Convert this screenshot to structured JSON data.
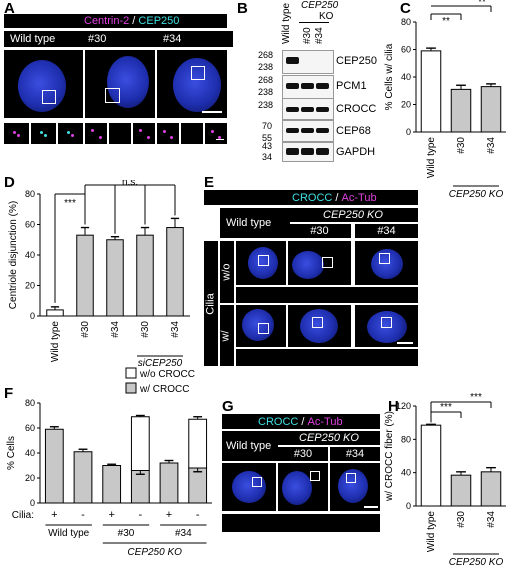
{
  "panels": {
    "A": {
      "label": "A",
      "title_a": "Centrin-2",
      "title_sep": " / ",
      "title_b": "CEP250",
      "cols": [
        "Wild type",
        "#30",
        "#34"
      ]
    },
    "B": {
      "label": "B",
      "col_wt": "Wild type",
      "col_ko": "CEP250",
      "col_ko2": "KO",
      "col_30": "#30",
      "col_34": "#34",
      "rows": [
        {
          "name": "CEP250",
          "mw": [
            "268",
            "238"
          ]
        },
        {
          "name": "PCM1",
          "mw": [
            "268",
            "238"
          ]
        },
        {
          "name": "CROCC",
          "mw": [
            "238"
          ]
        },
        {
          "name": "CEP68",
          "mw": [
            "70",
            "55"
          ]
        },
        {
          "name": "GAPDH",
          "mw": [
            "43",
            "34"
          ]
        }
      ]
    },
    "C": {
      "label": "C"
    },
    "D": {
      "label": "D"
    },
    "E": {
      "label": "E",
      "title_a": "CROCC",
      "title_sep": " / ",
      "title_b": "Ac-Tub",
      "ko": "CEP250 KO",
      "cols": [
        "Wild type",
        "#30",
        "#34"
      ],
      "side": "Cilia",
      "rows": [
        "w/o",
        "w/"
      ]
    },
    "F": {
      "label": "F"
    },
    "G": {
      "label": "G",
      "title_a": "CROCC",
      "title_sep": " / ",
      "title_b": "Ac-Tub",
      "ko": "CEP250 KO",
      "cols": [
        "Wild type",
        "#30",
        "#34"
      ]
    },
    "H": {
      "label": "H"
    }
  },
  "colors": {
    "magenta": "#e040e0",
    "cyan": "#40e0e0",
    "bar_white": "#ffffff",
    "bar_gray": "#c8c8c8"
  },
  "chart_data": [
    {
      "id": "C",
      "type": "bar",
      "categories": [
        "Wild type",
        "#30",
        "#34"
      ],
      "values": [
        59,
        31,
        33
      ],
      "errors": [
        2,
        3,
        2
      ],
      "ylabel": "% Cells w/ cilia",
      "ylim": [
        0,
        80
      ],
      "yticks": [
        0,
        20,
        40,
        60,
        80
      ],
      "group_label": "CEP250 KO",
      "sig": [
        "**",
        "**"
      ]
    },
    {
      "id": "D",
      "type": "bar",
      "categories": [
        "Wild type",
        "#30",
        "#34",
        "#30",
        "#34"
      ],
      "values": [
        4,
        53,
        50,
        53,
        58
      ],
      "errors": [
        2,
        5,
        2,
        5,
        6
      ],
      "ylabel": "Centriole disjunction (%)",
      "ylim": [
        0,
        80
      ],
      "yticks": [
        0,
        20,
        40,
        60,
        80
      ],
      "group_label": "siCEP250",
      "sig": [
        "***",
        "n.s."
      ]
    },
    {
      "id": "F",
      "type": "bar",
      "stacked": true,
      "groups": [
        "Wild type",
        "#30",
        "#34"
      ],
      "cilia": [
        "+",
        "-",
        "+",
        "-",
        "+",
        "-"
      ],
      "series": [
        {
          "name": "w/ CROCC",
          "values": [
            59,
            41,
            30,
            26,
            32,
            28
          ]
        },
        {
          "name": "w/o CROCC",
          "values": [
            0,
            0,
            0,
            43,
            0,
            39
          ]
        }
      ],
      "errors": [
        2,
        2,
        1,
        1,
        2,
        2
      ],
      "totals": [
        59,
        41,
        30,
        69,
        32,
        67
      ],
      "ylabel": "% Cells",
      "ylim": [
        0,
        80
      ],
      "yticks": [
        0,
        20,
        40,
        60,
        80
      ],
      "cilia_label": "Cilia:",
      "ko_label": "CEP250 KO"
    },
    {
      "id": "H",
      "type": "bar",
      "categories": [
        "Wild type",
        "#30",
        "#34"
      ],
      "values": [
        97,
        37,
        41
      ],
      "errors": [
        1,
        4,
        5
      ],
      "ylabel": "w/ CROCC fiber (%)",
      "ylim": [
        0,
        120
      ],
      "yticks": [
        0,
        40,
        80,
        120
      ],
      "group_label": "CEP250 KO",
      "sig": [
        "***",
        "***"
      ]
    }
  ]
}
